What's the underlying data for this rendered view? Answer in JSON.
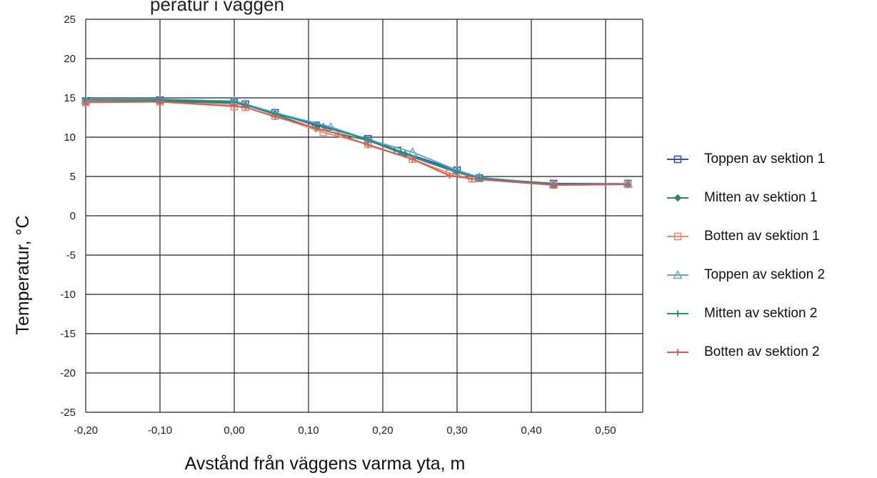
{
  "chart_data": {
    "type": "line",
    "title_fragment": "peratur i väggen",
    "xlabel": "Avstånd från väggens varma yta, m",
    "ylabel": "Temperatur, ",
    "ylabel_unit": "°C",
    "xlim": [
      -0.2,
      0.55
    ],
    "ylim": [
      -25,
      25
    ],
    "x_ticks": [
      -0.2,
      -0.1,
      0.0,
      0.1,
      0.2,
      0.3,
      0.4,
      0.5
    ],
    "x_tick_labels": [
      "-0,20",
      "-0,10",
      "0,00",
      "0,10",
      "0,20",
      "0,30",
      "0,40",
      "0,50"
    ],
    "y_ticks": [
      25,
      20,
      15,
      10,
      5,
      0,
      -5,
      -10,
      -15,
      -20,
      -25
    ],
    "y_tick_labels": [
      "25",
      "20",
      "15",
      "10",
      "5",
      "0",
      "-5",
      "-10",
      "-15",
      "-20",
      "-25"
    ],
    "grid": true,
    "legend_position": "right",
    "series": [
      {
        "name": "Toppen av sektion 1",
        "color": "#3a4fb0",
        "marker": "square",
        "x": [
          -0.2,
          -0.1,
          0.0,
          0.015,
          0.055,
          0.11,
          0.18,
          0.22,
          0.3,
          0.33,
          0.43,
          0.53
        ],
        "y": [
          14.6,
          14.7,
          14.4,
          14.2,
          13.1,
          11.5,
          9.8,
          8.3,
          5.8,
          4.8,
          4.1,
          4.1
        ]
      },
      {
        "name": "Mitten av sektion 1",
        "color": "#2e8a55",
        "marker": "diamond",
        "x": [
          -0.2,
          -0.1,
          0.0,
          0.015,
          0.055,
          0.11,
          0.18,
          0.23,
          0.3,
          0.33,
          0.43,
          0.53
        ],
        "y": [
          14.6,
          14.6,
          14.3,
          14.1,
          12.9,
          11.1,
          9.6,
          7.8,
          5.5,
          4.8,
          4.0,
          4.0
        ]
      },
      {
        "name": "Botten av sektion 1",
        "color": "#e88b6e",
        "marker": "square",
        "x": [
          -0.2,
          -0.1,
          0.0,
          0.015,
          0.055,
          0.12,
          0.18,
          0.24,
          0.29,
          0.32,
          0.43,
          0.53
        ],
        "y": [
          14.4,
          14.5,
          13.9,
          13.8,
          12.7,
          10.6,
          9.1,
          7.2,
          5.4,
          4.7,
          3.9,
          4.0
        ]
      },
      {
        "name": "Toppen av sektion 2",
        "color": "#6aa5c8",
        "marker": "triangle",
        "x": [
          -0.2,
          -0.1,
          0.0,
          0.015,
          0.055,
          0.13,
          0.18,
          0.24,
          0.3,
          0.33,
          0.43,
          0.53
        ],
        "y": [
          14.7,
          14.8,
          14.6,
          14.2,
          13.1,
          11.3,
          9.7,
          8.1,
          5.8,
          4.9,
          4.0,
          4.1
        ]
      },
      {
        "name": "Mitten av sektion 2",
        "color": "#1f8f99",
        "marker": "plus",
        "x": [
          -0.2,
          -0.1,
          0.0,
          0.015,
          0.055,
          0.12,
          0.18,
          0.23,
          0.3,
          0.33,
          0.43,
          0.53
        ],
        "y": [
          14.8,
          14.8,
          14.5,
          14.1,
          13.0,
          11.4,
          9.7,
          7.9,
          5.6,
          4.8,
          4.0,
          4.0
        ]
      },
      {
        "name": "Botten av sektion 2",
        "color": "#e05a4a",
        "marker": "plus",
        "x": [
          -0.2,
          -0.1,
          0.0,
          0.015,
          0.055,
          0.14,
          0.18,
          0.24,
          0.29,
          0.32,
          0.43,
          0.53
        ],
        "y": [
          14.5,
          14.5,
          14.0,
          13.8,
          12.6,
          10.4,
          9.0,
          7.2,
          5.1,
          4.7,
          3.9,
          4.0
        ]
      }
    ]
  }
}
